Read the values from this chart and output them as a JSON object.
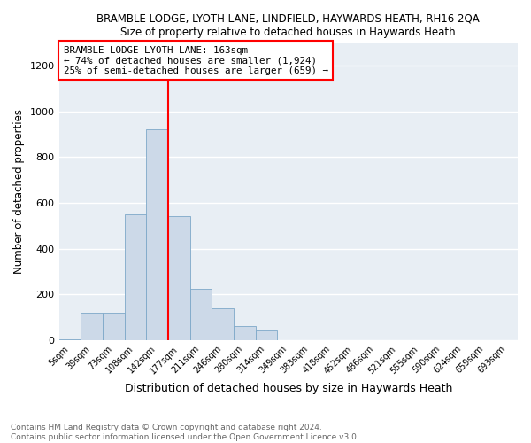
{
  "title1": "BRAMBLE LODGE, LYOTH LANE, LINDFIELD, HAYWARDS HEATH, RH16 2QA",
  "title2": "Size of property relative to detached houses in Haywards Heath",
  "xlabel": "Distribution of detached houses by size in Haywards Heath",
  "ylabel": "Number of detached properties",
  "bar_categories": [
    "5sqm",
    "39sqm",
    "73sqm",
    "108sqm",
    "142sqm",
    "177sqm",
    "211sqm",
    "246sqm",
    "280sqm",
    "314sqm",
    "349sqm",
    "383sqm",
    "418sqm",
    "452sqm",
    "486sqm",
    "521sqm",
    "555sqm",
    "590sqm",
    "624sqm",
    "659sqm",
    "693sqm"
  ],
  "bar_values": [
    5,
    120,
    120,
    550,
    920,
    540,
    225,
    140,
    60,
    40,
    0,
    0,
    0,
    0,
    0,
    0,
    0,
    0,
    0,
    0,
    0
  ],
  "bar_color": "#ccd9e8",
  "bar_edge_color": "#7da8c8",
  "vline_color": "red",
  "vline_x": 4.5,
  "annotation_title": "BRAMBLE LODGE LYOTH LANE: 163sqm",
  "annotation_line1": "← 74% of detached houses are smaller (1,924)",
  "annotation_line2": "25% of semi-detached houses are larger (659) →",
  "ylim": [
    0,
    1300
  ],
  "yticks": [
    0,
    200,
    400,
    600,
    800,
    1000,
    1200
  ],
  "footer1": "Contains HM Land Registry data © Crown copyright and database right 2024.",
  "footer2": "Contains public sector information licensed under the Open Government Licence v3.0.",
  "bg_color": "#e8eef4"
}
